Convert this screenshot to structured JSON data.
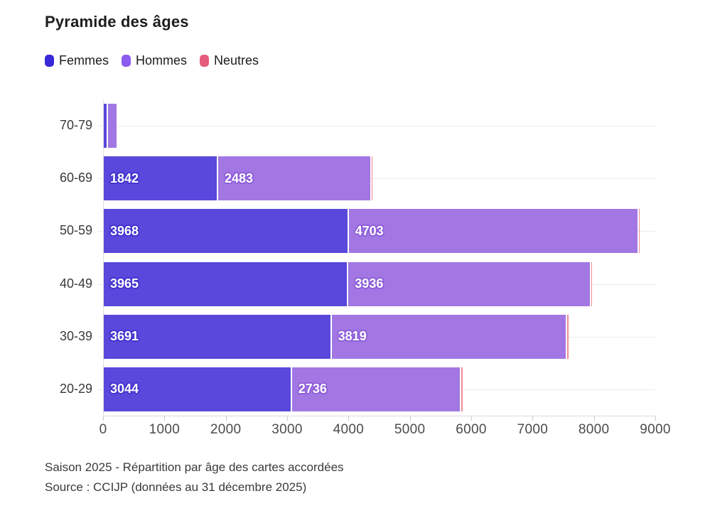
{
  "title": "Pyramide des âges",
  "legend": [
    {
      "label": "Femmes",
      "swatch_color": "#3928d8",
      "bar_color": "#5948db",
      "label_halo": "#4434cf"
    },
    {
      "label": "Hommes",
      "swatch_color": "#8b5cf0",
      "bar_color": "#a277e3",
      "label_halo": "#8f5fd9"
    },
    {
      "label": "Neutres",
      "swatch_color": "#e55c7c",
      "bar_color": "#f28b96",
      "label_halo": "#e06a7e"
    }
  ],
  "chart_data": {
    "type": "bar",
    "orientation": "horizontal",
    "stacked": true,
    "title": "Pyramide des âges",
    "categories": [
      "70-79",
      "60-69",
      "50-59",
      "40-49",
      "30-39",
      "20-29"
    ],
    "series": [
      {
        "name": "Femmes",
        "values": [
          45,
          1842,
          3968,
          3965,
          3691,
          3044
        ]
      },
      {
        "name": "Hommes",
        "values": [
          135,
          2483,
          4703,
          3936,
          3819,
          2736
        ]
      },
      {
        "name": "Neutres",
        "values": [
          0,
          8,
          20,
          15,
          20,
          20
        ]
      }
    ],
    "value_label_min": 1000,
    "xlim": [
      0,
      9000
    ],
    "x_ticks": [
      0,
      1000,
      2000,
      3000,
      4000,
      5000,
      6000,
      7000,
      8000,
      9000
    ],
    "grid": "horizontal-per-category",
    "legend_position": "top"
  },
  "footer": {
    "line1": "Saison 2025 - Répartition par âge des cartes accordées",
    "line2": "Source : CCIJP (données au 31 décembre 2025)"
  }
}
